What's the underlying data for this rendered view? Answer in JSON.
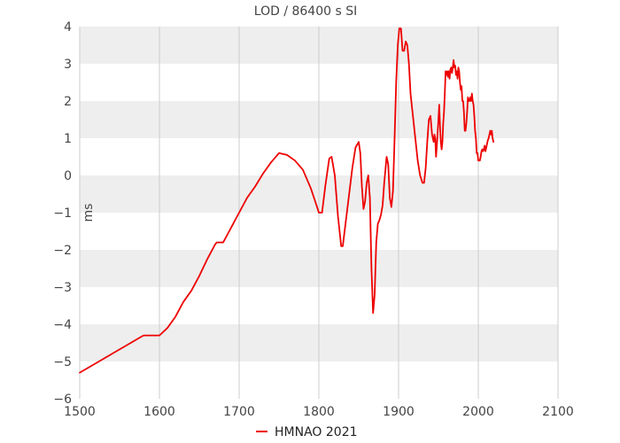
{
  "chart_data": {
    "type": "line",
    "title": "LOD / 86400 s SI",
    "xlabel": "",
    "ylabel": "ms",
    "xlim": [
      1500,
      2100
    ],
    "ylim": [
      -6,
      4
    ],
    "xticks": [
      1500,
      1600,
      1700,
      1800,
      1900,
      2000,
      2100
    ],
    "yticks": [
      -6,
      -5,
      -4,
      -3,
      -2,
      -1,
      0,
      1,
      2,
      3,
      4
    ],
    "grid": true,
    "legend": "bottom-center",
    "colors": {
      "series": "#ee0000",
      "band": "#eeeeee",
      "grid": "#cccccc"
    },
    "series": [
      {
        "name": "HMNAO 2021",
        "points": [
          [
            1500,
            -5.3
          ],
          [
            1520,
            -5.05
          ],
          [
            1540,
            -4.8
          ],
          [
            1560,
            -4.55
          ],
          [
            1580,
            -4.3
          ],
          [
            1600,
            -4.3
          ],
          [
            1610,
            -4.1
          ],
          [
            1620,
            -3.8
          ],
          [
            1630,
            -3.4
          ],
          [
            1640,
            -3.1
          ],
          [
            1650,
            -2.7
          ],
          [
            1660,
            -2.25
          ],
          [
            1670,
            -1.85
          ],
          [
            1672,
            -1.8
          ],
          [
            1680,
            -1.8
          ],
          [
            1690,
            -1.4
          ],
          [
            1700,
            -1.0
          ],
          [
            1710,
            -0.6
          ],
          [
            1720,
            -0.3
          ],
          [
            1730,
            0.05
          ],
          [
            1740,
            0.35
          ],
          [
            1750,
            0.6
          ],
          [
            1760,
            0.55
          ],
          [
            1770,
            0.4
          ],
          [
            1780,
            0.15
          ],
          [
            1790,
            -0.35
          ],
          [
            1797,
            -0.8
          ],
          [
            1800,
            -1.0
          ],
          [
            1804,
            -1.0
          ],
          [
            1808,
            -0.3
          ],
          [
            1813,
            0.45
          ],
          [
            1816,
            0.5
          ],
          [
            1820,
            0.0
          ],
          [
            1824,
            -1.1
          ],
          [
            1828,
            -1.9
          ],
          [
            1830,
            -1.9
          ],
          [
            1834,
            -1.2
          ],
          [
            1838,
            -0.5
          ],
          [
            1842,
            0.2
          ],
          [
            1846,
            0.75
          ],
          [
            1850,
            0.9
          ],
          [
            1852,
            0.6
          ],
          [
            1854,
            -0.3
          ],
          [
            1856,
            -0.9
          ],
          [
            1858,
            -0.7
          ],
          [
            1860,
            -0.2
          ],
          [
            1862,
            0.0
          ],
          [
            1864,
            -0.6
          ],
          [
            1866,
            -2.5
          ],
          [
            1868,
            -3.7
          ],
          [
            1870,
            -3.2
          ],
          [
            1872,
            -1.8
          ],
          [
            1874,
            -1.3
          ],
          [
            1876,
            -1.2
          ],
          [
            1878,
            -1.05
          ],
          [
            1880,
            -0.8
          ],
          [
            1882,
            -0.2
          ],
          [
            1885,
            0.5
          ],
          [
            1887,
            0.3
          ],
          [
            1889,
            -0.6
          ],
          [
            1891,
            -0.85
          ],
          [
            1893,
            -0.4
          ],
          [
            1895,
            1.0
          ],
          [
            1897,
            2.5
          ],
          [
            1899,
            3.5
          ],
          [
            1901,
            3.95
          ],
          [
            1903,
            3.95
          ],
          [
            1905,
            3.35
          ],
          [
            1907,
            3.35
          ],
          [
            1909,
            3.6
          ],
          [
            1911,
            3.5
          ],
          [
            1913,
            3.0
          ],
          [
            1915,
            2.2
          ],
          [
            1918,
            1.6
          ],
          [
            1921,
            1.0
          ],
          [
            1924,
            0.4
          ],
          [
            1927,
            0.0
          ],
          [
            1930,
            -0.2
          ],
          [
            1932,
            -0.2
          ],
          [
            1934,
            0.2
          ],
          [
            1936,
            0.9
          ],
          [
            1938,
            1.5
          ],
          [
            1940,
            1.6
          ],
          [
            1942,
            1.1
          ],
          [
            1944,
            0.9
          ],
          [
            1945,
            1.1
          ],
          [
            1946,
            1.0
          ],
          [
            1947,
            0.5
          ],
          [
            1948,
            0.8
          ],
          [
            1950,
            1.5
          ],
          [
            1951,
            1.9
          ],
          [
            1952,
            1.3
          ],
          [
            1953,
            0.9
          ],
          [
            1954,
            0.7
          ],
          [
            1955,
            0.9
          ],
          [
            1956,
            1.4
          ],
          [
            1957,
            1.7
          ],
          [
            1958,
            2.2
          ],
          [
            1959,
            2.8
          ],
          [
            1960,
            2.7
          ],
          [
            1961,
            2.8
          ],
          [
            1962,
            2.65
          ],
          [
            1963,
            2.8
          ],
          [
            1964,
            2.6
          ],
          [
            1965,
            2.85
          ],
          [
            1966,
            2.9
          ],
          [
            1967,
            2.75
          ],
          [
            1968,
            2.9
          ],
          [
            1969,
            3.1
          ],
          [
            1970,
            2.9
          ],
          [
            1971,
            2.95
          ],
          [
            1972,
            2.7
          ],
          [
            1973,
            2.8
          ],
          [
            1974,
            2.6
          ],
          [
            1975,
            2.9
          ],
          [
            1976,
            2.8
          ],
          [
            1977,
            2.5
          ],
          [
            1978,
            2.3
          ],
          [
            1979,
            2.4
          ],
          [
            1980,
            2.0
          ],
          [
            1981,
            2.0
          ],
          [
            1982,
            1.7
          ],
          [
            1983,
            1.2
          ],
          [
            1984,
            1.2
          ],
          [
            1985,
            1.4
          ],
          [
            1986,
            1.7
          ],
          [
            1987,
            2.1
          ],
          [
            1988,
            2.0
          ],
          [
            1989,
            2.0
          ],
          [
            1990,
            2.1
          ],
          [
            1991,
            2.0
          ],
          [
            1992,
            2.2
          ],
          [
            1993,
            2.0
          ],
          [
            1994,
            1.9
          ],
          [
            1995,
            1.6
          ],
          [
            1996,
            1.2
          ],
          [
            1997,
            1.0
          ],
          [
            1998,
            0.6
          ],
          [
            1999,
            0.6
          ],
          [
            2000,
            0.4
          ],
          [
            2001,
            0.4
          ],
          [
            2002,
            0.4
          ],
          [
            2003,
            0.5
          ],
          [
            2004,
            0.65
          ],
          [
            2005,
            0.7
          ],
          [
            2006,
            0.65
          ],
          [
            2007,
            0.7
          ],
          [
            2008,
            0.8
          ],
          [
            2009,
            0.65
          ],
          [
            2010,
            0.75
          ],
          [
            2011,
            0.85
          ],
          [
            2012,
            0.95
          ],
          [
            2013,
            1.0
          ],
          [
            2014,
            1.1
          ],
          [
            2015,
            1.2
          ],
          [
            2016,
            1.1
          ],
          [
            2017,
            1.2
          ],
          [
            2018,
            1.0
          ],
          [
            2019,
            0.9
          ]
        ]
      }
    ]
  }
}
